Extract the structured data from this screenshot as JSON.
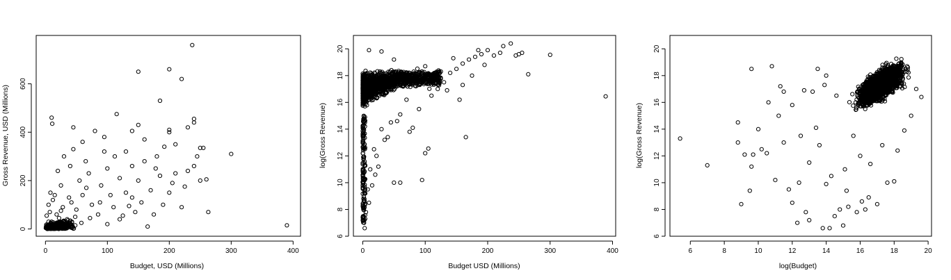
{
  "chart_data": [
    {
      "type": "scatter",
      "title": "",
      "xlabel": "Budget, USD (Millions)",
      "ylabel": "Gross Revenue, USD (Millions)",
      "xlim": [
        -15,
        412
      ],
      "ylim": [
        -30,
        800
      ],
      "xticks": [
        0,
        100,
        200,
        300,
        400
      ],
      "yticks": [
        0,
        200,
        400,
        600
      ],
      "grid": false,
      "legend": "none",
      "points": [
        [
          237,
          760
        ],
        [
          150,
          650
        ],
        [
          200,
          660
        ],
        [
          220,
          620
        ],
        [
          185,
          530
        ],
        [
          115,
          475
        ],
        [
          10,
          460
        ],
        [
          11,
          435
        ],
        [
          45,
          420
        ],
        [
          240,
          455
        ],
        [
          240,
          440
        ],
        [
          230,
          420
        ],
        [
          200,
          410
        ],
        [
          200,
          400
        ],
        [
          150,
          430
        ],
        [
          140,
          405
        ],
        [
          80,
          405
        ],
        [
          60,
          360
        ],
        [
          95,
          380
        ],
        [
          300,
          310
        ],
        [
          250,
          335
        ],
        [
          255,
          335
        ],
        [
          260,
          205
        ],
        [
          240,
          260
        ],
        [
          263,
          70
        ],
        [
          390,
          15
        ],
        [
          170,
          160
        ],
        [
          210,
          230
        ],
        [
          180,
          300
        ],
        [
          160,
          280
        ],
        [
          130,
          320
        ],
        [
          100,
          250
        ],
        [
          120,
          210
        ],
        [
          150,
          200
        ],
        [
          200,
          150
        ],
        [
          220,
          90
        ],
        [
          175,
          60
        ],
        [
          165,
          10
        ],
        [
          190,
          100
        ],
        [
          140,
          130
        ],
        [
          110,
          90
        ],
        [
          90,
          180
        ],
        [
          70,
          230
        ],
        [
          55,
          200
        ],
        [
          40,
          260
        ],
        [
          30,
          300
        ],
        [
          25,
          180
        ],
        [
          20,
          240
        ],
        [
          15,
          140
        ],
        [
          12,
          120
        ],
        [
          8,
          150
        ],
        [
          60,
          140
        ],
        [
          75,
          100
        ],
        [
          85,
          60
        ],
        [
          50,
          80
        ],
        [
          35,
          40
        ],
        [
          120,
          40
        ],
        [
          145,
          70
        ],
        [
          100,
          20
        ],
        [
          130,
          150
        ],
        [
          160,
          370
        ],
        [
          210,
          350
        ],
        [
          230,
          240
        ],
        [
          185,
          220
        ],
        [
          205,
          190
        ],
        [
          245,
          300
        ],
        [
          95,
          320
        ],
        [
          65,
          280
        ],
        [
          45,
          330
        ],
        [
          140,
          260
        ],
        [
          250,
          200
        ],
        [
          225,
          175
        ],
        [
          155,
          110
        ],
        [
          135,
          95
        ],
        [
          105,
          140
        ],
        [
          88,
          110
        ],
        [
          66,
          170
        ],
        [
          112,
          300
        ],
        [
          178,
          250
        ],
        [
          192,
          340
        ],
        [
          125,
          55
        ],
        [
          72,
          45
        ],
        [
          58,
          25
        ],
        [
          42,
          110
        ],
        [
          28,
          90
        ],
        [
          18,
          60
        ],
        [
          5,
          30
        ],
        [
          3,
          8
        ],
        [
          2,
          55
        ],
        [
          7,
          70
        ],
        [
          14,
          20
        ],
        [
          22,
          45
        ],
        [
          33,
          15
        ],
        [
          48,
          50
        ],
        [
          5,
          100
        ],
        [
          10,
          30
        ],
        [
          25,
          75
        ],
        [
          38,
          130
        ]
      ],
      "dense_cluster": {
        "x": [
          0,
          90
        ],
        "y": [
          0,
          120
        ],
        "count": 900
      }
    },
    {
      "type": "scatter",
      "title": "",
      "xlabel": "Budget USD (Millions)",
      "ylabel": "log(Gross Revenue)",
      "xlim": [
        -15,
        405
      ],
      "ylim": [
        6,
        21
      ],
      "xticks": [
        0,
        100,
        200,
        300,
        400
      ],
      "yticks": [
        6,
        8,
        10,
        12,
        14,
        16,
        18,
        20
      ],
      "grid": false,
      "legend": "none",
      "points": [
        [
          389,
          16.45
        ],
        [
          300,
          19.55
        ],
        [
          265,
          18.1
        ],
        [
          237,
          20.4
        ],
        [
          225,
          20.2
        ],
        [
          200,
          19.9
        ],
        [
          165,
          13.4
        ],
        [
          155,
          16.2
        ],
        [
          100,
          12.2
        ],
        [
          105,
          12.55
        ],
        [
          95,
          10.2
        ],
        [
          60,
          10.0
        ],
        [
          50,
          10.0
        ],
        [
          40,
          13.4
        ],
        [
          30,
          14.0
        ],
        [
          25,
          11.2
        ],
        [
          20,
          10.6
        ],
        [
          15,
          9.8
        ],
        [
          10,
          8.5
        ],
        [
          5,
          7.8
        ],
        [
          3,
          6.6
        ],
        [
          2,
          7.0
        ],
        [
          1,
          8.0
        ],
        [
          4,
          9.2
        ],
        [
          8,
          9.5
        ],
        [
          12,
          11.0
        ],
        [
          18,
          12.5
        ],
        [
          22,
          12.0
        ],
        [
          35,
          13.2
        ],
        [
          45,
          14.5
        ],
        [
          55,
          14.6
        ],
        [
          75,
          13.8
        ],
        [
          80,
          14.1
        ],
        [
          90,
          15.5
        ],
        [
          110,
          16.5
        ],
        [
          120,
          17.0
        ],
        [
          130,
          17.5
        ],
        [
          140,
          18.2
        ],
        [
          150,
          18.5
        ],
        [
          160,
          18.9
        ],
        [
          170,
          19.2
        ],
        [
          180,
          19.4
        ],
        [
          190,
          19.6
        ],
        [
          210,
          19.5
        ],
        [
          220,
          19.7
        ],
        [
          245,
          19.5
        ],
        [
          250,
          19.6
        ],
        [
          255,
          19.7
        ],
        [
          160,
          17.3
        ],
        [
          175,
          18.0
        ],
        [
          195,
          18.8
        ],
        [
          185,
          19.9
        ],
        [
          145,
          19.3
        ],
        [
          135,
          16.9
        ],
        [
          125,
          18.3
        ],
        [
          115,
          17.8
        ],
        [
          100,
          18.7
        ],
        [
          85,
          17.2
        ],
        [
          70,
          16.2
        ],
        [
          60,
          15.1
        ],
        [
          65,
          17.6
        ],
        [
          30,
          19.8
        ],
        [
          10,
          19.9
        ],
        [
          50,
          19.2
        ]
      ],
      "dense_cluster": {
        "x": [
          0,
          120
        ],
        "y": [
          13,
          19.8
        ],
        "count": 1600
      }
    },
    {
      "type": "scatter",
      "title": "",
      "xlabel": "log(Budget)",
      "ylabel": "log(Gross Revenue)",
      "xlim": [
        4.8,
        20.2
      ],
      "ylim": [
        6,
        21
      ],
      "xticks": [
        6,
        8,
        10,
        12,
        14,
        16,
        18,
        20
      ],
      "yticks": [
        6,
        8,
        10,
        12,
        14,
        16,
        18,
        20
      ],
      "grid": false,
      "legend": "none",
      "points": [
        [
          5.4,
          13.3
        ],
        [
          7.0,
          11.3
        ],
        [
          9.6,
          18.5
        ],
        [
          10.8,
          18.7
        ],
        [
          8.8,
          14.5
        ],
        [
          8.8,
          13.0
        ],
        [
          9.0,
          8.4
        ],
        [
          9.2,
          12.1
        ],
        [
          9.5,
          9.4
        ],
        [
          9.7,
          12.1
        ],
        [
          9.6,
          11.2
        ],
        [
          10.0,
          14.0
        ],
        [
          10.2,
          12.5
        ],
        [
          10.5,
          12.2
        ],
        [
          11.0,
          10.2
        ],
        [
          11.3,
          17.2
        ],
        [
          11.5,
          16.8
        ],
        [
          11.2,
          15.0
        ],
        [
          11.8,
          9.5
        ],
        [
          12.0,
          8.5
        ],
        [
          12.3,
          7.0
        ],
        [
          12.5,
          13.5
        ],
        [
          12.8,
          7.8
        ],
        [
          13.0,
          7.2
        ],
        [
          13.2,
          16.8
        ],
        [
          13.5,
          18.5
        ],
        [
          13.8,
          6.6
        ],
        [
          14.0,
          18.0
        ],
        [
          14.2,
          6.6
        ],
        [
          14.5,
          7.5
        ],
        [
          14.8,
          8.0
        ],
        [
          15.0,
          6.8
        ],
        [
          15.3,
          8.2
        ],
        [
          15.8,
          7.8
        ],
        [
          16.1,
          8.6
        ],
        [
          16.3,
          8.0
        ],
        [
          16.5,
          8.9
        ],
        [
          17.0,
          8.4
        ],
        [
          17.6,
          10.0
        ],
        [
          18.0,
          10.1
        ],
        [
          18.2,
          12.4
        ],
        [
          18.6,
          13.9
        ],
        [
          19.0,
          15.0
        ],
        [
          19.6,
          16.4
        ],
        [
          19.3,
          17.0
        ],
        [
          12.4,
          10.0
        ],
        [
          13.0,
          11.5
        ],
        [
          13.6,
          12.8
        ],
        [
          14.3,
          10.5
        ],
        [
          15.1,
          11.0
        ],
        [
          15.6,
          13.5
        ],
        [
          16.0,
          12.0
        ],
        [
          16.6,
          11.4
        ],
        [
          17.3,
          12.8
        ],
        [
          15.2,
          9.4
        ],
        [
          14.0,
          9.9
        ],
        [
          13.4,
          14.1
        ],
        [
          12.0,
          15.8
        ],
        [
          11.5,
          13.0
        ],
        [
          10.6,
          16.0
        ],
        [
          12.7,
          16.9
        ],
        [
          13.9,
          17.3
        ],
        [
          14.6,
          16.5
        ]
      ],
      "dense_cluster": {
        "x": [
          14.5,
          19.5
        ],
        "y": [
          13.5,
          20.3
        ],
        "count": 2000
      }
    }
  ]
}
